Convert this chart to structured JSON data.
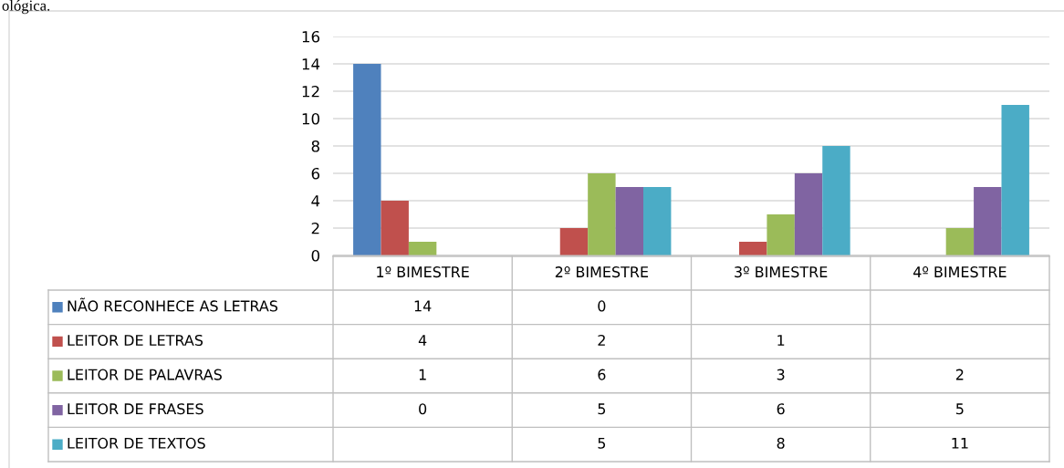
{
  "chart_data": {
    "type": "bar",
    "categories": [
      "1º BIMESTRE",
      "2º BIMESTRE",
      "3º BIMESTRE",
      "4º BIMESTRE"
    ],
    "series": [
      {
        "name": "NÃO RECONHECE AS LETRAS",
        "color": "#4f81bd",
        "values": [
          14,
          0,
          null,
          null
        ]
      },
      {
        "name": "LEITOR DE LETRAS",
        "color": "#c0504d",
        "values": [
          4,
          2,
          1,
          null
        ]
      },
      {
        "name": "LEITOR DE PALAVRAS",
        "color": "#9bbb59",
        "values": [
          1,
          6,
          3,
          2
        ]
      },
      {
        "name": "LEITOR DE FRASES",
        "color": "#8064a2",
        "values": [
          0,
          5,
          6,
          5
        ]
      },
      {
        "name": "LEITOR DE TEXTOS",
        "color": "#4bacc6",
        "values": [
          null,
          5,
          8,
          11
        ]
      }
    ],
    "ylim": [
      0,
      16
    ],
    "yticks": [
      0,
      2,
      4,
      6,
      8,
      10,
      12,
      14,
      16
    ],
    "grid": "y",
    "legend": "bottom",
    "data_labels": true,
    "annotations": [
      "ológica."
    ]
  }
}
